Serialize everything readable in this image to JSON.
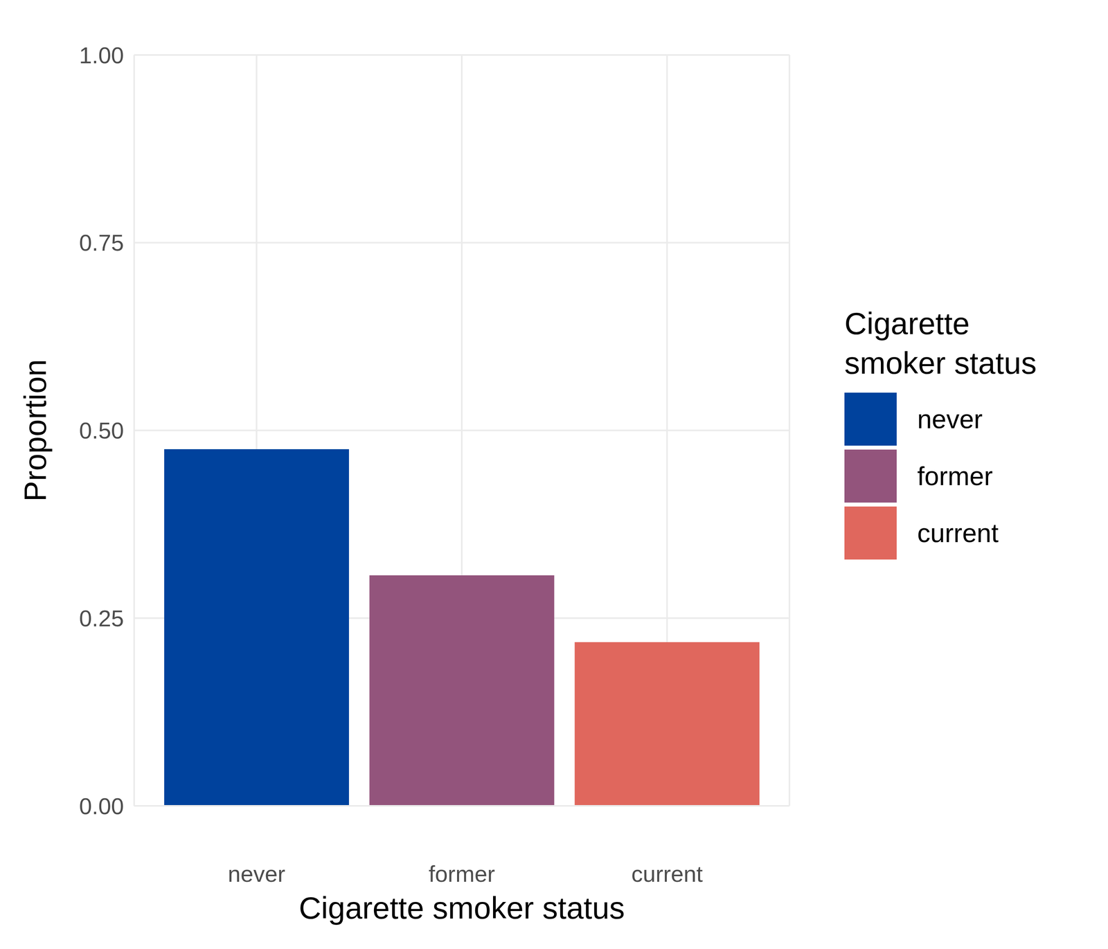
{
  "chart_data": {
    "type": "bar",
    "x_label": "Cigarette smoker status",
    "y_label": "Proportion",
    "legend_title": "Cigarette smoker status",
    "categories": [
      "never",
      "former",
      "current"
    ],
    "values": [
      0.475,
      0.307,
      0.218
    ],
    "colors": [
      "#00429d",
      "#93547c",
      "#e0675d"
    ],
    "ylim": [
      0,
      1
    ],
    "yticks": [
      {
        "value": 0,
        "label": "0.00"
      },
      0.25,
      {
        "value": 0.5,
        "label": "0.50"
      },
      0.75,
      {
        "value": 1,
        "label": "1.00"
      }
    ],
    "grid": true,
    "legend": "right"
  }
}
